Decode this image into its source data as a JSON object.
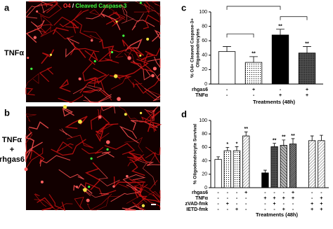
{
  "panels": {
    "a": {
      "letter": "a",
      "side_label": "TNFα",
      "stain_1": "O4",
      "stain_sep": "/",
      "stain_2": "Cleaved Caspase-3"
    },
    "b": {
      "letter": "b",
      "side_label_lines": [
        "TNFα",
        "+",
        "rhgas6"
      ]
    }
  },
  "chart_data": [
    {
      "type": "bar",
      "letter": "c",
      "y_label_lines": [
        "% O4+ Cleaved Caspase-3+",
        "Oligodendrocytes"
      ],
      "x_label": "Treatments (48h)",
      "ylim": [
        0,
        100
      ],
      "yticks": [
        0,
        20,
        40,
        60,
        80,
        100
      ],
      "values": [
        45,
        30,
        68,
        43
      ],
      "errors": [
        7,
        8,
        8,
        9
      ],
      "significance": [
        null,
        "**",
        "**",
        "**"
      ],
      "fills": [
        "white",
        "dots",
        "black",
        "dots-dark"
      ],
      "group_sizes": [
        4
      ],
      "comparisons": [
        [
          0,
          1
        ],
        [
          0,
          2
        ],
        [
          2,
          3
        ]
      ],
      "condition_rows": [
        {
          "name": "rhgas6",
          "signs": [
            "-",
            "+",
            "-",
            "+"
          ]
        },
        {
          "name": "TNFα",
          "signs": [
            "-",
            "-",
            "+",
            "+"
          ]
        }
      ]
    },
    {
      "type": "bar",
      "letter": "d",
      "y_label_lines": [
        "% Oligodendrocyte Survival"
      ],
      "x_label": "Treatments (48h)",
      "ylim": [
        0,
        100
      ],
      "yticks": [
        0,
        20,
        40,
        60,
        80,
        100
      ],
      "values": [
        42,
        55,
        55,
        77,
        22,
        61,
        63,
        65,
        70,
        70
      ],
      "errors": [
        4,
        5,
        6,
        6,
        4,
        5,
        8,
        8,
        7,
        8
      ],
      "significance": [
        null,
        "*",
        "*",
        "**",
        null,
        "**",
        "**",
        "**",
        null,
        null
      ],
      "fills": [
        "white",
        "dots",
        "dots",
        "stripes-light",
        "black",
        "dots-dark",
        "hatch",
        "hatch-dark",
        "stripes-light",
        "stripes-light"
      ],
      "group_sizes": [
        4,
        4,
        2
      ],
      "condition_rows": [
        {
          "name": "rhgas6",
          "signs": [
            "-",
            "-",
            "-",
            "+",
            "-",
            "-",
            "-",
            "+",
            "-",
            "-"
          ]
        },
        {
          "name": "TNFα",
          "signs": [
            "-",
            "-",
            "-",
            "-",
            "+",
            "+",
            "+",
            "+",
            "-",
            "+"
          ]
        },
        {
          "name": "zVAD-fmk",
          "signs": [
            "-",
            "+",
            "-",
            "-",
            "-",
            "+",
            "-",
            "-",
            "+",
            "+"
          ]
        },
        {
          "name": "IETD-fmk",
          "signs": [
            "-",
            "-",
            "+",
            "-",
            "-",
            "-",
            "+",
            "-",
            "+",
            "+"
          ]
        }
      ]
    }
  ]
}
